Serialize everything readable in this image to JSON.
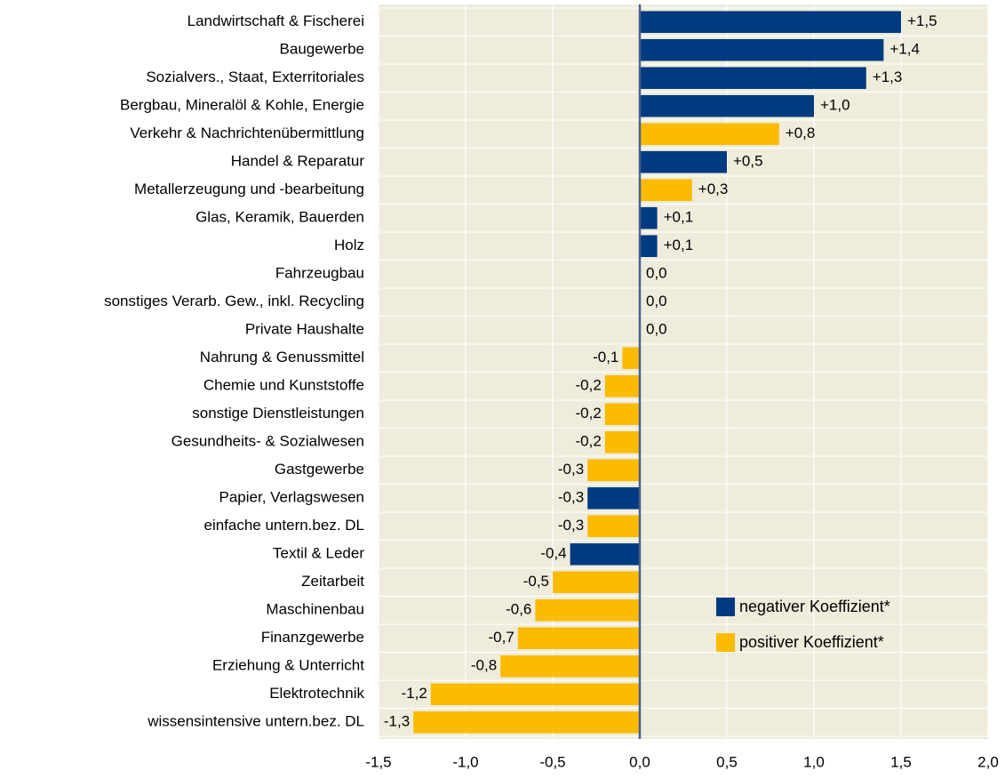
{
  "chart_data": {
    "type": "barh",
    "categories": [
      "Landwirtschaft & Fischerei",
      "Baugewerbe",
      "Sozialvers., Staat, Exterritoriales",
      "Bergbau, Mineralöl & Kohle, Energie",
      "Verkehr & Nachrichtenübermittlung",
      "Handel & Reparatur",
      "Metallerzeugung und -bearbeitung",
      "Glas, Keramik, Bauerden",
      "Holz",
      "Fahrzeugbau",
      "sonstiges Verarb. Gew., inkl. Recycling",
      "Private Haushalte",
      "Nahrung & Genussmittel",
      "Chemie und Kunststoffe",
      "sonstige Dienstleistungen",
      "Gesundheits- & Sozialwesen",
      "Gastgewerbe",
      "Papier, Verlagswesen",
      "einfache untern.bez. DL",
      "Textil & Leder",
      "Zeitarbeit",
      "Maschinenbau",
      "Finanzgewerbe",
      "Erziehung & Unterricht",
      "Elektrotechnik",
      "wissensintensive untern.bez. DL"
    ],
    "series": [
      {
        "name": "negativer Koeffizient*",
        "color": "#003a80",
        "values": [
          1.5,
          1.4,
          1.3,
          1.0,
          null,
          0.5,
          null,
          0.1,
          0.1,
          0.0,
          0.0,
          0.0,
          null,
          null,
          null,
          null,
          null,
          -0.3,
          null,
          -0.4,
          null,
          null,
          null,
          null,
          null,
          null
        ],
        "value_labels": [
          "+1,5",
          "+1,4",
          "+1,3",
          "+1,0",
          null,
          "+0,5",
          null,
          "+0,1",
          "+0,1",
          "0,0",
          "0,0",
          "0,0",
          null,
          null,
          null,
          null,
          null,
          "-0,3",
          null,
          "-0,4",
          null,
          null,
          null,
          null,
          null,
          null
        ]
      },
      {
        "name": "positiver Koeffizient*",
        "color": "#fbbb00",
        "values": [
          null,
          null,
          null,
          null,
          0.8,
          null,
          0.3,
          null,
          null,
          null,
          null,
          null,
          -0.1,
          -0.2,
          -0.2,
          -0.2,
          -0.3,
          null,
          -0.3,
          null,
          -0.5,
          -0.6,
          -0.7,
          -0.8,
          -1.2,
          -1.3
        ],
        "value_labels": [
          null,
          null,
          null,
          null,
          "+0,8",
          null,
          "+0,3",
          null,
          null,
          null,
          null,
          null,
          "-0,1",
          "-0,2",
          "-0,2",
          "-0,2",
          "-0,3",
          null,
          "-0,3",
          null,
          "-0,5",
          "-0,6",
          "-0,7",
          "-0,8",
          "-1,2",
          "-1,3"
        ]
      }
    ],
    "xlim": [
      -1.5,
      2.0
    ],
    "xticks": [
      {
        "value": -1.5,
        "label": "-1,5"
      },
      {
        "value": -1.0,
        "label": "-1,0"
      },
      {
        "value": -0.5,
        "label": "-0,5"
      },
      {
        "value": 0,
        "label": "0,0"
      },
      {
        "value": 0.5,
        "label": "0,5"
      },
      {
        "value": 1.0,
        "label": "1,0"
      },
      {
        "value": 1.5,
        "label": "1,5"
      },
      {
        "value": 2.0,
        "label": "2,0"
      }
    ],
    "grid": true,
    "legend": "lower right"
  }
}
